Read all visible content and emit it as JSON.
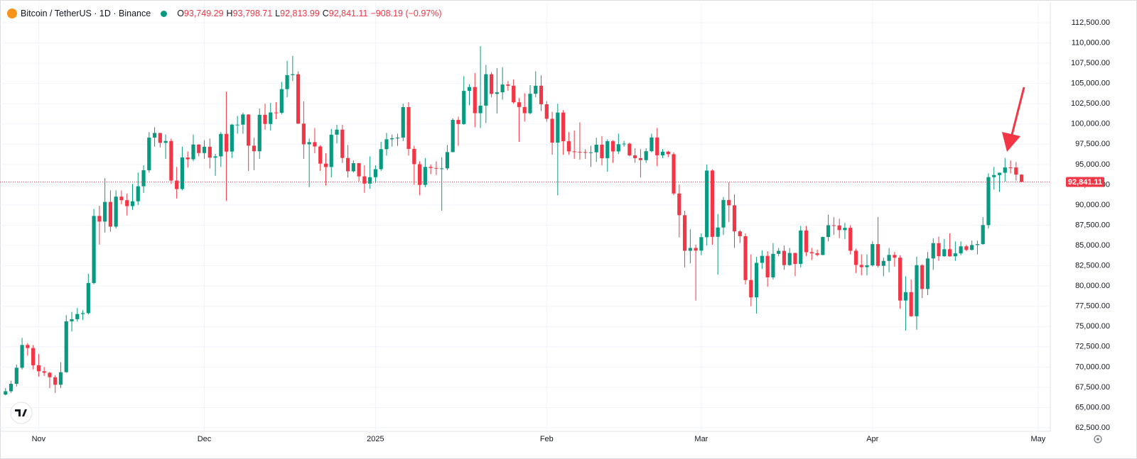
{
  "chart_data": {
    "type": "candlestick",
    "title": "Bitcoin / TetherUS · 1D · Binance",
    "header": {
      "open_label": "O",
      "open": "93,749.29",
      "high_label": "H",
      "high": "93,798.71",
      "low_label": "L",
      "low": "92,813.99",
      "close_label": "C",
      "close": "92,841.11",
      "change": "−908.19 (−0.97%)"
    },
    "up_color": "#089981",
    "down_color": "#f23645",
    "grid": true,
    "xlim": [
      -1,
      189.2
    ],
    "xticks": [
      {
        "value": 6,
        "label": "Nov"
      },
      {
        "value": 36,
        "label": "Dec"
      },
      {
        "value": 67,
        "label": "2025"
      },
      {
        "value": 98,
        "label": "Feb"
      },
      {
        "value": 126,
        "label": "Mar"
      },
      {
        "value": 157,
        "label": "Apr"
      },
      {
        "value": 187,
        "label": "May"
      }
    ],
    "ylim": [
      62500,
      112500
    ],
    "yticks": [
      {
        "value": 62500,
        "label": "62,500.00"
      },
      {
        "value": 65000,
        "label": "65,000.00"
      },
      {
        "value": 67500,
        "label": "67,500.00"
      },
      {
        "value": 70000,
        "label": "70,000.00"
      },
      {
        "value": 72500,
        "label": "72,500.00"
      },
      {
        "value": 75000,
        "label": "75,000.00"
      },
      {
        "value": 77500,
        "label": "77,500.00"
      },
      {
        "value": 80000,
        "label": "80,000.00"
      },
      {
        "value": 82500,
        "label": "82,500.00"
      },
      {
        "value": 85000,
        "label": "85,000.00"
      },
      {
        "value": 87500,
        "label": "87,500.00"
      },
      {
        "value": 90000,
        "label": "90,000.00"
      },
      {
        "value": 92500,
        "label": "92,500.00"
      },
      {
        "value": 95000,
        "label": "95,000.00"
      },
      {
        "value": 97500,
        "label": "97,500.00"
      },
      {
        "value": 100000,
        "label": "100,000.00"
      },
      {
        "value": 102500,
        "label": "102,500.00"
      },
      {
        "value": 105000,
        "label": "105,000.00"
      },
      {
        "value": 107500,
        "label": "107,500.00"
      },
      {
        "value": 110000,
        "label": "110,000.00"
      },
      {
        "value": 112500,
        "label": "112,500.00"
      }
    ],
    "last_price": {
      "value": 92841.11,
      "label": "92,841.11"
    },
    "open": [
      66600,
      67010,
      67930,
      69910,
      72720,
      72340,
      70220,
      69480,
      69290,
      68740,
      67810,
      69360,
      75640,
      75900,
      76540,
      76650,
      80370,
      88650,
      87950,
      90380,
      87330,
      91030,
      90590,
      89860,
      90460,
      92310,
      94290,
      98320,
      98890,
      97670,
      97900,
      93010,
      91970,
      95860,
      95640,
      97460,
      96410,
      97190,
      95840,
      96000,
      98770,
      96590,
      99920,
      99920,
      101170,
      97320,
      96630,
      101130,
      100000,
      101420,
      101380,
      104300,
      106030,
      106140,
      100040,
      97490,
      97760,
      97220,
      95100,
      94690,
      98680,
      99300,
      95800,
      94160,
      95160,
      93530,
      92640,
      93430,
      94420,
      96890,
      98110,
      98240,
      98320,
      102080,
      96920,
      95040,
      92480,
      94700,
      94570,
      94490,
      94520,
      96530,
      100500,
      99990,
      104080,
      104560,
      101330,
      102260,
      106140,
      103710,
      103910,
      104870,
      104720,
      102680,
      102090,
      101330,
      103730,
      104720,
      102430,
      100640,
      97700,
      101410,
      97870,
      96620,
      96560,
      96530,
      96480,
      96500,
      97440,
      95770,
      97870,
      96610,
      97500,
      97570,
      96120,
      95780,
      95540,
      96640,
      98330,
      96130,
      96580,
      96270,
      91420,
      88740,
      84350,
      84700,
      84370,
      86030,
      94250,
      86070,
      87220,
      90620,
      89960,
      86740,
      86150,
      80730,
      78600,
      82860,
      83720,
      81070,
      83970,
      84340,
      82580,
      84080,
      82720,
      86850,
      84170,
      84040,
      83830,
      86050,
      87500,
      87470,
      86900,
      87180,
      84350,
      82600,
      82330,
      82550,
      85170,
      82490,
      83100,
      83840,
      83500,
      78210,
      79240,
      76270,
      82570,
      79630,
      83400,
      85290,
      83680,
      84540,
      83670,
      84030,
      84900,
      84450,
      85060,
      85170,
      87520,
      93440,
      93690,
      93980,
      94640,
      94630,
      93749.29
    ],
    "high": [
      67400,
      68300,
      70300,
      73600,
      72960,
      72700,
      71600,
      70000,
      69400,
      69000,
      70600,
      76400,
      76800,
      77300,
      77000,
      81500,
      89500,
      89900,
      93300,
      91800,
      91800,
      91800,
      91400,
      92600,
      94000,
      94900,
      99000,
      99600,
      98800,
      98700,
      98200,
      94700,
      97200,
      96600,
      98700,
      97500,
      98000,
      98200,
      96300,
      99000,
      104000,
      100000,
      101000,
      101400,
      101200,
      98300,
      101900,
      102500,
      102600,
      102700,
      105200,
      107800,
      108400,
      106500,
      102800,
      98200,
      99500,
      97400,
      96400,
      99400,
      99900,
      99900,
      97400,
      95500,
      95200,
      94900,
      96000,
      94900,
      97800,
      98900,
      98700,
      98800,
      102500,
      102700,
      97300,
      95400,
      95800,
      95000,
      95400,
      95900,
      97400,
      100700,
      100900,
      105900,
      104900,
      106300,
      109600,
      107300,
      106400,
      106900,
      107000,
      105300,
      105500,
      103200,
      103800,
      104800,
      106500,
      106000,
      102800,
      101500,
      102500,
      101700,
      99000,
      99200,
      100200,
      96900,
      97300,
      98300,
      98500,
      98100,
      98000,
      98800,
      97900,
      97700,
      97000,
      96900,
      97000,
      98800,
      99500,
      96900,
      96700,
      96500,
      92500,
      89300,
      87000,
      85100,
      86500,
      95000,
      94400,
      88900,
      91000,
      92800,
      91300,
      86900,
      86500,
      83900,
      83600,
      84400,
      84300,
      85300,
      84700,
      85000,
      84700,
      84100,
      87400,
      87400,
      84700,
      84500,
      86100,
      88800,
      88500,
      88300,
      87800,
      87500,
      84600,
      83900,
      83900,
      85500,
      88500,
      83500,
      84700,
      84200,
      83800,
      81200,
      80800,
      83600,
      82700,
      84200,
      85900,
      86100,
      85800,
      86500,
      85500,
      85500,
      85100,
      85600,
      85600,
      88500,
      93900,
      94700,
      94000,
      95800,
      95500,
      95300,
      93798.71
    ],
    "low": [
      66500,
      66800,
      67600,
      69700,
      71400,
      69700,
      68800,
      68900,
      67400,
      66800,
      67400,
      69300,
      74400,
      75600,
      75800,
      76500,
      80200,
      85100,
      86600,
      86700,
      87100,
      90100,
      88700,
      89400,
      90000,
      91500,
      94000,
      97200,
      97100,
      95700,
      92600,
      90800,
      91800,
      94600,
      95400,
      96000,
      95700,
      94500,
      93600,
      94700,
      90500,
      95800,
      98800,
      98800,
      94200,
      94300,
      95700,
      99300,
      99200,
      100600,
      101200,
      103300,
      105300,
      100000,
      95700,
      92200,
      96400,
      94200,
      92400,
      93400,
      97600,
      95200,
      93400,
      94000,
      92900,
      91500,
      92000,
      92700,
      94200,
      96100,
      97200,
      97300,
      97900,
      96100,
      92500,
      91200,
      92200,
      93800,
      93700,
      89300,
      94300,
      96500,
      97300,
      99900,
      102300,
      99600,
      99500,
      100100,
      103300,
      101300,
      103000,
      104100,
      102500,
      97800,
      100300,
      101200,
      103300,
      101600,
      100300,
      96200,
      91200,
      96200,
      96200,
      95700,
      95600,
      95700,
      94700,
      95300,
      94900,
      94100,
      95200,
      96300,
      97200,
      96000,
      95200,
      93400,
      95200,
      96500,
      94800,
      95800,
      95900,
      91200,
      86000,
      82300,
      82800,
      78200,
      83800,
      85000,
      85100,
      81400,
      86300,
      87900,
      84700,
      85300,
      80200,
      77500,
      76600,
      82100,
      79900,
      80800,
      83700,
      82000,
      82500,
      81200,
      82300,
      83700,
      83200,
      83700,
      83800,
      85500,
      86300,
      85900,
      85800,
      83900,
      81600,
      81300,
      81300,
      82400,
      82300,
      81200,
      81700,
      82400,
      77200,
      74500,
      76200,
      74600,
      78500,
      78900,
      82000,
      83100,
      83600,
      83600,
      83100,
      83800,
      84300,
      84400,
      83900,
      85100,
      87100,
      91900,
      91600,
      92900,
      93900,
      93000,
      92813.99
    ],
    "close": [
      67010,
      67930,
      69910,
      72720,
      72340,
      70220,
      69480,
      69290,
      68740,
      67810,
      69360,
      75640,
      75900,
      76540,
      76650,
      80370,
      88650,
      87950,
      90380,
      87330,
      91030,
      90590,
      89860,
      90460,
      92310,
      94290,
      98320,
      98890,
      97670,
      97900,
      93010,
      91970,
      95860,
      95640,
      97460,
      96410,
      97190,
      95840,
      96000,
      98770,
      96590,
      99920,
      99920,
      101170,
      97320,
      96630,
      101130,
      100000,
      101420,
      101380,
      104300,
      106030,
      106140,
      100040,
      97490,
      97760,
      97220,
      95100,
      94690,
      98680,
      99300,
      95800,
      94160,
      95160,
      93530,
      92640,
      93430,
      94420,
      96890,
      98110,
      98240,
      98320,
      102080,
      96920,
      95040,
      92480,
      94700,
      94570,
      94490,
      94520,
      96530,
      100500,
      99990,
      104080,
      104560,
      101330,
      102260,
      106140,
      103710,
      103910,
      104870,
      104720,
      102680,
      102090,
      101330,
      103730,
      104720,
      102430,
      100640,
      97700,
      101410,
      97870,
      96620,
      96560,
      96530,
      96480,
      96500,
      97440,
      95770,
      97870,
      96610,
      97500,
      97570,
      96120,
      95780,
      95540,
      96640,
      98330,
      96130,
      96580,
      96270,
      91420,
      88740,
      84350,
      84700,
      84370,
      86030,
      94250,
      86070,
      87220,
      90620,
      89960,
      86740,
      86150,
      80730,
      78600,
      82860,
      83720,
      81070,
      83970,
      84340,
      82580,
      84080,
      82720,
      86850,
      84170,
      84040,
      83830,
      86050,
      87500,
      87470,
      86900,
      87180,
      84350,
      82600,
      82330,
      82550,
      85170,
      82490,
      83100,
      83840,
      83500,
      78210,
      79240,
      76270,
      82570,
      79630,
      83400,
      85290,
      83680,
      84540,
      83670,
      84030,
      84900,
      84450,
      85060,
      85170,
      87520,
      93440,
      93690,
      93980,
      94640,
      94630,
      93749.29,
      92841.11
    ]
  }
}
